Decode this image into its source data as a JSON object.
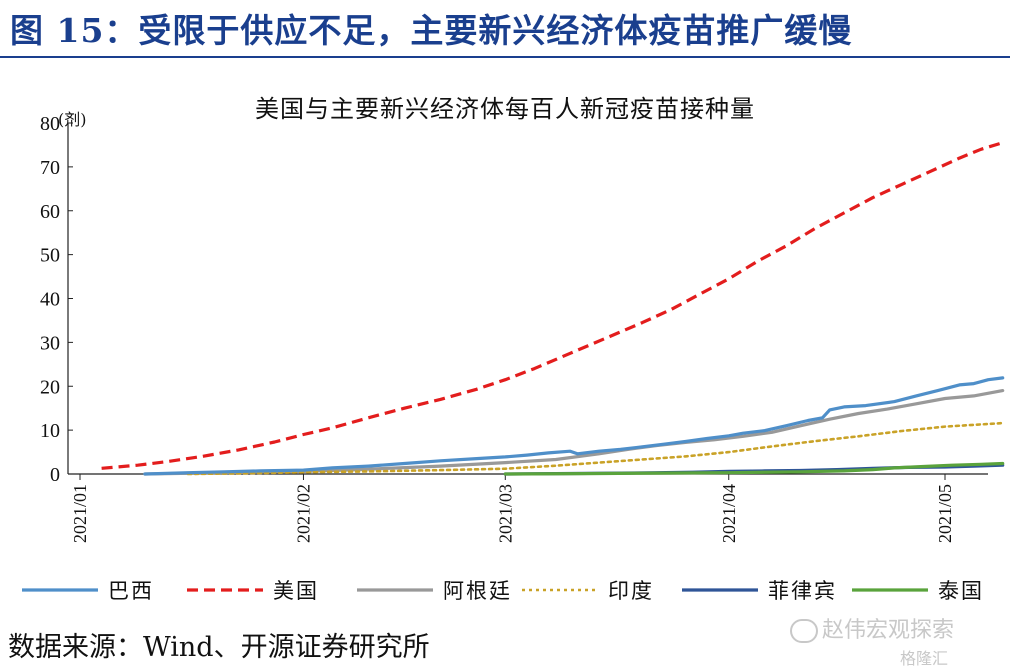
{
  "figure_title": "图 15：受限于供应不足，主要新兴经济体疫苗推广缓慢",
  "source": "数据来源：Wind、开源证券研究所",
  "watermark": "赵伟宏观探索",
  "watermark2": "格隆汇",
  "chart_data": {
    "type": "line",
    "title": "美国与主要新兴经济体每百人新冠疫苗接种量",
    "ylabel": "(剂)",
    "ylim": [
      0,
      80
    ],
    "yticks": [
      "0",
      "10",
      "20",
      "30",
      "40",
      "50",
      "60",
      "70",
      "80"
    ],
    "xlim": [
      0,
      130
    ],
    "xticks": [
      {
        "label": "2021/01",
        "x": 0
      },
      {
        "label": "2021/02",
        "x": 31
      },
      {
        "label": "2021/03",
        "x": 59
      },
      {
        "label": "2021/04",
        "x": 90
      },
      {
        "label": "2021/05",
        "x": 120
      }
    ],
    "x_unit": "days since 2021-01-01",
    "series": [
      {
        "name": "巴西",
        "color": "#4f8fc9",
        "style": "solid",
        "points": [
          [
            9,
            0
          ],
          [
            15,
            0.3
          ],
          [
            20,
            0.5
          ],
          [
            25,
            0.7
          ],
          [
            31,
            0.9
          ],
          [
            35,
            1.4
          ],
          [
            40,
            1.8
          ],
          [
            45,
            2.4
          ],
          [
            50,
            3.0
          ],
          [
            55,
            3.5
          ],
          [
            59,
            3.9
          ],
          [
            62,
            4.3
          ],
          [
            65,
            4.8
          ],
          [
            68,
            5.2
          ],
          [
            69,
            4.6
          ],
          [
            72,
            5.2
          ],
          [
            75,
            5.6
          ],
          [
            78,
            6.2
          ],
          [
            81,
            6.8
          ],
          [
            84,
            7.4
          ],
          [
            87,
            8.1
          ],
          [
            90,
            8.7
          ],
          [
            92,
            9.3
          ],
          [
            95,
            9.9
          ],
          [
            98,
            11.0
          ],
          [
            101,
            12.2
          ],
          [
            103,
            12.8
          ],
          [
            104,
            14.6
          ],
          [
            106,
            15.3
          ],
          [
            109,
            15.6
          ],
          [
            113,
            16.5
          ],
          [
            116,
            17.8
          ],
          [
            119,
            19.0
          ],
          [
            122,
            20.3
          ],
          [
            124,
            20.6
          ],
          [
            126,
            21.5
          ],
          [
            128,
            21.9
          ]
        ]
      },
      {
        "name": "美国",
        "color": "#e31d1d",
        "style": "dashed",
        "points": [
          [
            3,
            1.3
          ],
          [
            8,
            2.0
          ],
          [
            12,
            2.8
          ],
          [
            17,
            4.0
          ],
          [
            22,
            5.5
          ],
          [
            27,
            7.3
          ],
          [
            31,
            9.0
          ],
          [
            35,
            10.5
          ],
          [
            40,
            12.8
          ],
          [
            45,
            15.0
          ],
          [
            50,
            17.0
          ],
          [
            55,
            19.3
          ],
          [
            59,
            21.5
          ],
          [
            63,
            24.0
          ],
          [
            68,
            27.5
          ],
          [
            73,
            31.0
          ],
          [
            78,
            34.5
          ],
          [
            82,
            37.5
          ],
          [
            86,
            41.0
          ],
          [
            90,
            44.5
          ],
          [
            94,
            48.5
          ],
          [
            98,
            52.0
          ],
          [
            102,
            56.0
          ],
          [
            106,
            59.5
          ],
          [
            110,
            63.0
          ],
          [
            114,
            66.0
          ],
          [
            118,
            69.0
          ],
          [
            122,
            72.0
          ],
          [
            125,
            74.0
          ],
          [
            128,
            75.5
          ]
        ]
      },
      {
        "name": "阿根廷",
        "color": "#999999",
        "style": "solid",
        "points": [
          [
            9,
            0
          ],
          [
            20,
            0.3
          ],
          [
            31,
            0.6
          ],
          [
            40,
            1.1
          ],
          [
            50,
            1.8
          ],
          [
            59,
            2.6
          ],
          [
            66,
            3.3
          ],
          [
            72,
            4.6
          ],
          [
            76,
            5.6
          ],
          [
            80,
            6.5
          ],
          [
            84,
            7.2
          ],
          [
            88,
            7.8
          ],
          [
            92,
            8.6
          ],
          [
            96,
            9.5
          ],
          [
            100,
            11.0
          ],
          [
            104,
            12.5
          ],
          [
            108,
            13.8
          ],
          [
            112,
            14.8
          ],
          [
            116,
            16.0
          ],
          [
            120,
            17.2
          ],
          [
            124,
            17.8
          ],
          [
            128,
            19.0
          ]
        ]
      },
      {
        "name": "印度",
        "color": "#c9a227",
        "style": "dotted",
        "points": [
          [
            15,
            0
          ],
          [
            25,
            0.2
          ],
          [
            31,
            0.4
          ],
          [
            40,
            0.6
          ],
          [
            50,
            0.9
          ],
          [
            59,
            1.2
          ],
          [
            66,
            1.9
          ],
          [
            72,
            2.6
          ],
          [
            78,
            3.3
          ],
          [
            84,
            4.0
          ],
          [
            90,
            5.0
          ],
          [
            96,
            6.3
          ],
          [
            102,
            7.5
          ],
          [
            108,
            8.6
          ],
          [
            114,
            9.8
          ],
          [
            120,
            10.8
          ],
          [
            128,
            11.6
          ]
        ]
      },
      {
        "name": "菲律宾",
        "color": "#2f5597",
        "style": "solid",
        "points": [
          [
            59,
            0
          ],
          [
            66,
            0.1
          ],
          [
            75,
            0.2
          ],
          [
            80,
            0.3
          ],
          [
            85,
            0.4
          ],
          [
            90,
            0.6
          ],
          [
            95,
            0.7
          ],
          [
            100,
            0.8
          ],
          [
            105,
            1.0
          ],
          [
            110,
            1.3
          ],
          [
            115,
            1.5
          ],
          [
            120,
            1.6
          ],
          [
            124,
            1.8
          ],
          [
            128,
            2.0
          ]
        ]
      },
      {
        "name": "泰国",
        "color": "#5aa33c",
        "style": "solid",
        "points": [
          [
            59,
            0
          ],
          [
            70,
            0.1
          ],
          [
            80,
            0.2
          ],
          [
            90,
            0.3
          ],
          [
            100,
            0.5
          ],
          [
            106,
            0.7
          ],
          [
            110,
            1.0
          ],
          [
            113,
            1.4
          ],
          [
            117,
            1.7
          ],
          [
            121,
            2.0
          ],
          [
            125,
            2.2
          ],
          [
            128,
            2.4
          ]
        ]
      }
    ]
  }
}
